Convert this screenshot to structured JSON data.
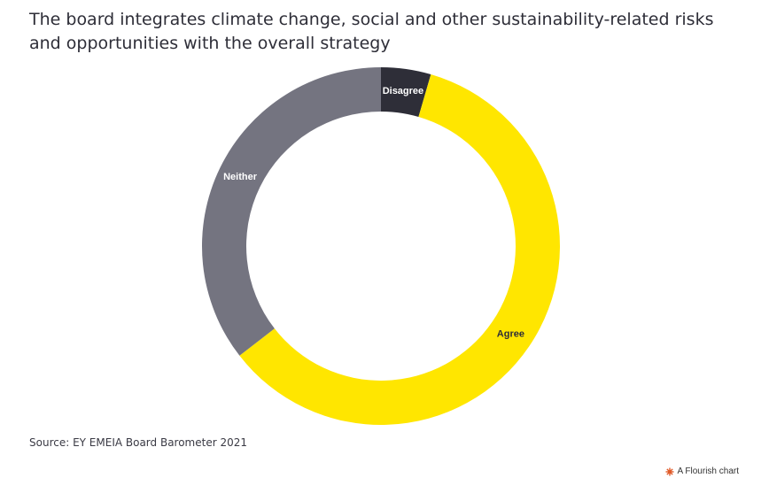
{
  "page": {
    "title": "The board integrates climate change, social and other sustainability-related risks and opportunities with the overall strategy",
    "source": "Source: EY EMEIA Board Barometer 2021",
    "credit": "A Flourish chart"
  },
  "colors": {
    "disagree": "#2e2e38",
    "agree": "#ffe600",
    "neither": "#747480",
    "label_on_dark": "#ffffff",
    "label_on_light": "#2e2e38",
    "credit_logo": "#e05a28"
  },
  "chart_data": {
    "type": "pie",
    "variant": "donut",
    "title": "The board integrates climate change, social and other sustainability-related risks and opportunities with the overall strategy",
    "start": "top, clockwise",
    "slices": [
      {
        "label": "Disagree",
        "value": 4.5,
        "unit": "%"
      },
      {
        "label": "Agree",
        "value": 60.0,
        "unit": "%"
      },
      {
        "label": "Neither",
        "value": 35.5,
        "unit": "%"
      }
    ]
  }
}
